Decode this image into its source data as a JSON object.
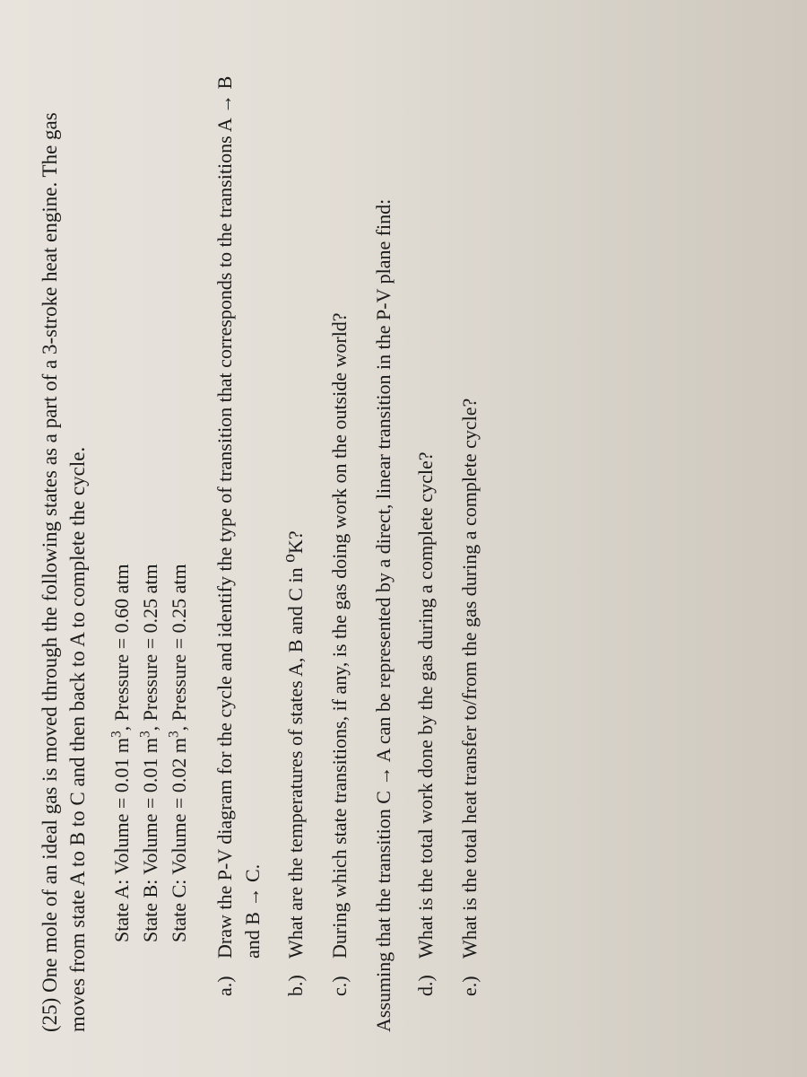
{
  "problem": {
    "number": "(25)",
    "intro": "One mole of an ideal gas is moved through the following states as a part of a 3-stroke heat engine. The gas moves from state A to B to C and then back to A to complete the cycle."
  },
  "states": {
    "A": {
      "label": "State A:",
      "volume": "Volume = 0.01 m",
      "vol_exp": "3",
      "sep": ",",
      "pressure": "Pressure = 0.60 atm"
    },
    "B": {
      "label": "State B:",
      "volume": "Volume = 0.01 m",
      "vol_exp": "3",
      "sep": ",",
      "pressure": "Pressure = 0.25 atm"
    },
    "C": {
      "label": "State C:",
      "volume": "Volume = 0.02 m",
      "vol_exp": "3",
      "sep": ",",
      "pressure": "Pressure = 0.25 atm"
    }
  },
  "questions": {
    "a": {
      "label": "a.)",
      "text": "Draw the P-V diagram for the cycle and identify the type of transition that corresponds to the transitions A → B and B → C."
    },
    "b": {
      "label": "b.)",
      "text_pre": "What are the temperatures of states A, B and C in ",
      "deg": "o",
      "unit": "K?"
    },
    "c": {
      "label": "c.)",
      "text": "During which state transitions, if any, is the gas doing work on the outside world?"
    },
    "d": {
      "label": "d.)",
      "text": "What is the total work done by the gas during a complete cycle?"
    },
    "e": {
      "label": "e.)",
      "text": "What is the total heat transfer to/from the gas during a complete cycle?"
    }
  },
  "assumption": "Assuming that the transition C → A can be represented by a direct, linear transition in the P-V plane find:"
}
